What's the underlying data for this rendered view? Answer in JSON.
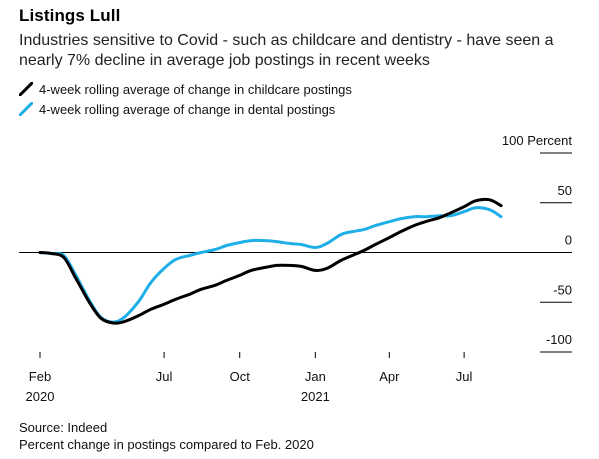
{
  "header": {
    "title": "Listings Lull",
    "subtitle": "Industries sensitive to Covid - such as childcare and dentistry - have seen a nearly 7% decline in average job postings in recent weeks"
  },
  "legend": [
    {
      "label": "4-week rolling average of change in childcare postings",
      "color": "#000000"
    },
    {
      "label": "4-week rolling average of change in dental postings",
      "color": "#1eaee8"
    }
  ],
  "footer": {
    "source": "Source: Indeed",
    "note": "Percent change in postings compared to Feb. 2020"
  },
  "chart_data": {
    "type": "line",
    "title": "Listings Lull",
    "ylim": [
      -100,
      100
    ],
    "yticks": [
      {
        "value": 100,
        "label": "100 Percent"
      },
      {
        "value": 50,
        "label": "50"
      },
      {
        "value": 0,
        "label": "0"
      },
      {
        "value": -50,
        "label": "-50"
      },
      {
        "value": -100,
        "label": "-100"
      }
    ],
    "xlim": [
      "2020-02-01",
      "2021-09-07"
    ],
    "xticks": [
      {
        "date": "2020-02-01",
        "label": "Feb",
        "year": "2020"
      },
      {
        "date": "2020-07-01",
        "label": "Jul",
        "year": ""
      },
      {
        "date": "2020-10-01",
        "label": "Oct",
        "year": ""
      },
      {
        "date": "2021-01-01",
        "label": "Jan",
        "year": "2021"
      },
      {
        "date": "2021-04-01",
        "label": "Apr",
        "year": ""
      },
      {
        "date": "2021-07-01",
        "label": "Jul",
        "year": ""
      }
    ],
    "series": [
      {
        "name": "4-week rolling average of change in childcare postings",
        "color": "#000000",
        "points": [
          [
            "2020-02-01",
            0
          ],
          [
            "2020-02-15",
            -1
          ],
          [
            "2020-03-01",
            -5
          ],
          [
            "2020-03-15",
            -25
          ],
          [
            "2020-04-01",
            -50
          ],
          [
            "2020-04-15",
            -66
          ],
          [
            "2020-05-01",
            -71
          ],
          [
            "2020-05-15",
            -69
          ],
          [
            "2020-06-01",
            -63
          ],
          [
            "2020-06-15",
            -57
          ],
          [
            "2020-07-01",
            -52
          ],
          [
            "2020-07-15",
            -47
          ],
          [
            "2020-08-01",
            -42
          ],
          [
            "2020-08-15",
            -37
          ],
          [
            "2020-09-01",
            -33
          ],
          [
            "2020-09-15",
            -28
          ],
          [
            "2020-10-01",
            -23
          ],
          [
            "2020-10-15",
            -18
          ],
          [
            "2020-11-01",
            -15
          ],
          [
            "2020-11-15",
            -13
          ],
          [
            "2020-12-01",
            -13
          ],
          [
            "2020-12-15",
            -14
          ],
          [
            "2021-01-01",
            -18
          ],
          [
            "2021-01-15",
            -16
          ],
          [
            "2021-02-01",
            -8
          ],
          [
            "2021-02-15",
            -3
          ],
          [
            "2021-03-01",
            2
          ],
          [
            "2021-03-15",
            8
          ],
          [
            "2021-04-01",
            15
          ],
          [
            "2021-04-15",
            21
          ],
          [
            "2021-05-01",
            27
          ],
          [
            "2021-05-15",
            31
          ],
          [
            "2021-06-01",
            35
          ],
          [
            "2021-06-15",
            40
          ],
          [
            "2021-07-01",
            46
          ],
          [
            "2021-07-15",
            52
          ],
          [
            "2021-08-01",
            53
          ],
          [
            "2021-08-15",
            47
          ]
        ]
      },
      {
        "name": "4-week rolling average of change in dental postings",
        "color": "#1eaee8",
        "points": [
          [
            "2020-02-01",
            0
          ],
          [
            "2020-02-15",
            -1
          ],
          [
            "2020-03-01",
            -3
          ],
          [
            "2020-03-15",
            -22
          ],
          [
            "2020-04-01",
            -48
          ],
          [
            "2020-04-15",
            -65
          ],
          [
            "2020-05-01",
            -70
          ],
          [
            "2020-05-15",
            -64
          ],
          [
            "2020-06-01",
            -48
          ],
          [
            "2020-06-15",
            -30
          ],
          [
            "2020-07-01",
            -16
          ],
          [
            "2020-07-15",
            -7
          ],
          [
            "2020-08-01",
            -3
          ],
          [
            "2020-08-15",
            0
          ],
          [
            "2020-09-01",
            3
          ],
          [
            "2020-09-15",
            7
          ],
          [
            "2020-10-01",
            10
          ],
          [
            "2020-10-15",
            12
          ],
          [
            "2020-11-01",
            12
          ],
          [
            "2020-11-15",
            11
          ],
          [
            "2020-12-01",
            9
          ],
          [
            "2020-12-15",
            8
          ],
          [
            "2021-01-01",
            5
          ],
          [
            "2021-01-15",
            9
          ],
          [
            "2021-02-01",
            18
          ],
          [
            "2021-02-15",
            21
          ],
          [
            "2021-03-01",
            23
          ],
          [
            "2021-03-15",
            27
          ],
          [
            "2021-04-01",
            31
          ],
          [
            "2021-04-15",
            34
          ],
          [
            "2021-05-01",
            36
          ],
          [
            "2021-05-15",
            36
          ],
          [
            "2021-06-01",
            37
          ],
          [
            "2021-06-15",
            37
          ],
          [
            "2021-07-01",
            41
          ],
          [
            "2021-07-15",
            45
          ],
          [
            "2021-08-01",
            43
          ],
          [
            "2021-08-15",
            36
          ]
        ]
      }
    ]
  }
}
